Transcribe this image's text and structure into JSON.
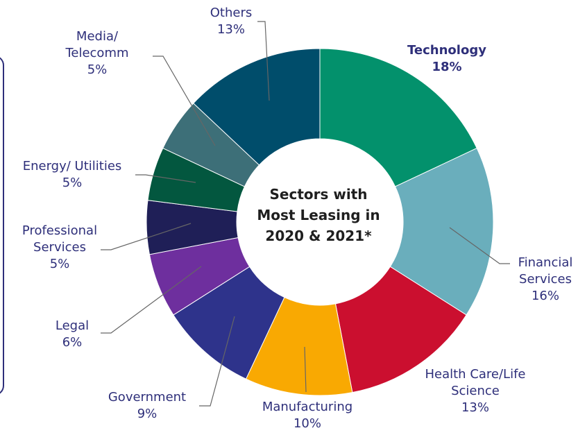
{
  "chart_data": {
    "type": "pie",
    "title": "",
    "center_label": [
      "Sectors with",
      "Most Leasing in",
      "2020 & 2021*"
    ],
    "slices": [
      {
        "label": [
          "Technology"
        ],
        "value": 18,
        "value_label": "18%",
        "color": "#03916c",
        "highlight": true
      },
      {
        "label": [
          "Financial",
          "Services"
        ],
        "value": 16,
        "value_label": "16%",
        "color": "#6aaebc"
      },
      {
        "label": [
          "Health Care/Life",
          "Science"
        ],
        "value": 13,
        "value_label": "13%",
        "color": "#cb0f2f"
      },
      {
        "label": [
          "Manufacturing"
        ],
        "value": 10,
        "value_label": "10%",
        "color": "#f9a902"
      },
      {
        "label": [
          "Government"
        ],
        "value": 9,
        "value_label": "9%",
        "color": "#2e338b"
      },
      {
        "label": [
          "Legal"
        ],
        "value": 6,
        "value_label": "6%",
        "color": "#6e2f9e"
      },
      {
        "label": [
          "Professional",
          "Services"
        ],
        "value": 5,
        "value_label": "5%",
        "color": "#1f1f57"
      },
      {
        "label": [
          "Energy/ Utilities"
        ],
        "value": 5,
        "value_label": "5%",
        "color": "#03573f"
      },
      {
        "label": [
          "Media/",
          "Telecomm"
        ],
        "value": 5,
        "value_label": "5%",
        "color": "#3d6f78"
      },
      {
        "label": [
          "Others"
        ],
        "value": 13,
        "value_label": "13%",
        "color": "#004d6b"
      }
    ]
  }
}
